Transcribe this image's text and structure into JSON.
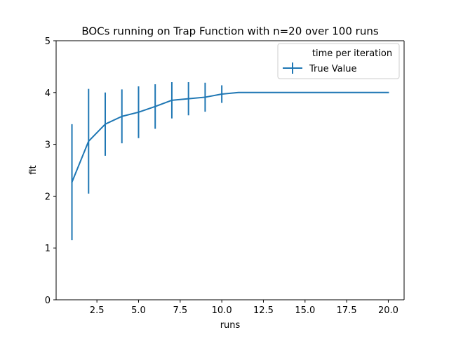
{
  "chart_data": {
    "type": "line",
    "title": "BOCs running on Trap Function with n=20 over 100 runs",
    "xlabel": "runs",
    "ylabel": "fit",
    "xlim": [
      0.05,
      20.95
    ],
    "ylim": [
      0,
      5
    ],
    "xticks": [
      2.5,
      5.0,
      7.5,
      10.0,
      12.5,
      15.0,
      17.5,
      20.0
    ],
    "xtick_labels": [
      "2.5",
      "5.0",
      "7.5",
      "10.0",
      "12.5",
      "15.0",
      "17.5",
      "20.0"
    ],
    "yticks": [
      0,
      1,
      2,
      3,
      4,
      5
    ],
    "ytick_labels": [
      "0",
      "1",
      "2",
      "3",
      "4",
      "5"
    ],
    "grid": false,
    "legend": {
      "placement": "upper right",
      "title": "time per iteration",
      "entries": [
        "True Value"
      ]
    },
    "series": [
      {
        "name": "True Value",
        "color": "#1f77b4",
        "x": [
          1,
          2,
          3,
          4,
          5,
          6,
          7,
          8,
          9,
          10,
          11,
          12,
          13,
          14,
          15,
          16,
          17,
          18,
          19,
          20
        ],
        "y": [
          2.27,
          3.06,
          3.39,
          3.54,
          3.62,
          3.73,
          3.85,
          3.88,
          3.91,
          3.97,
          4.0,
          4.0,
          4.0,
          4.0,
          4.0,
          4.0,
          4.0,
          4.0,
          4.0,
          4.0
        ],
        "yerr": [
          1.12,
          1.01,
          0.61,
          0.52,
          0.5,
          0.43,
          0.35,
          0.32,
          0.28,
          0.17,
          0,
          0,
          0,
          0,
          0,
          0,
          0,
          0,
          0,
          0
        ]
      }
    ]
  }
}
